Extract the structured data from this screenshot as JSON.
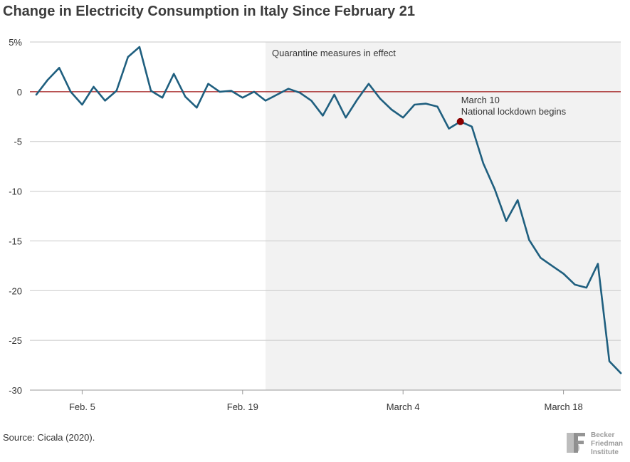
{
  "title": "Change in Electricity Consumption in Italy Since February 21",
  "source": "Source: Cicala (2020).",
  "logo": {
    "line1": "Becker",
    "line2": "Friedman",
    "line3": "Institute",
    "mark": "BF"
  },
  "colors": {
    "line": "#1f5f7f",
    "zero_line": "#a01818",
    "marker": "#8b0000",
    "shade": "#f2f2f2",
    "grid": "#c8c8c8"
  },
  "chart_data": {
    "type": "line",
    "title": "Change in Electricity Consumption in Italy Since February 21",
    "xlabel": "",
    "ylabel": "",
    "ylim": [
      -30,
      5
    ],
    "y_ticks": [
      5,
      0,
      -5,
      -10,
      -15,
      -20,
      -25,
      -30
    ],
    "y_tick_labels": [
      "5%",
      "0",
      "-5",
      "-10",
      "-15",
      "-20",
      "-25",
      "-30"
    ],
    "x_ticks": [
      {
        "label": "Feb. 5",
        "day": 4
      },
      {
        "label": "Feb. 19",
        "day": 18
      },
      {
        "label": "March 4",
        "day": 32
      },
      {
        "label": "March 18",
        "day": 46
      }
    ],
    "shaded_region": {
      "start_day": 20,
      "end_day": 51.5,
      "label": "Quarantine measures in effect"
    },
    "annotation": {
      "day": 37,
      "value": -3.0,
      "line1": "March 10",
      "line2": "National lockdown begins"
    },
    "grid": true,
    "series": [
      {
        "name": "",
        "values": [
          -0.3,
          1.2,
          2.4,
          0.0,
          -1.3,
          0.5,
          -0.9,
          0.1,
          3.5,
          4.5,
          0.1,
          -0.6,
          1.8,
          -0.5,
          -1.6,
          0.8,
          0.0,
          0.1,
          -0.6,
          0.0,
          -0.9,
          -0.3,
          0.3,
          -0.1,
          -0.9,
          -2.4,
          -0.3,
          -2.6,
          -0.8,
          0.8,
          -0.7,
          -1.8,
          -2.6,
          -1.3,
          -1.2,
          -1.5,
          -3.7,
          -3.0,
          -3.5,
          -7.2,
          -9.8,
          -13.0,
          -10.9,
          -14.9,
          -16.7,
          -17.5,
          -18.3,
          -19.4,
          -19.7,
          -17.3,
          -27.1,
          -28.3
        ]
      }
    ]
  }
}
